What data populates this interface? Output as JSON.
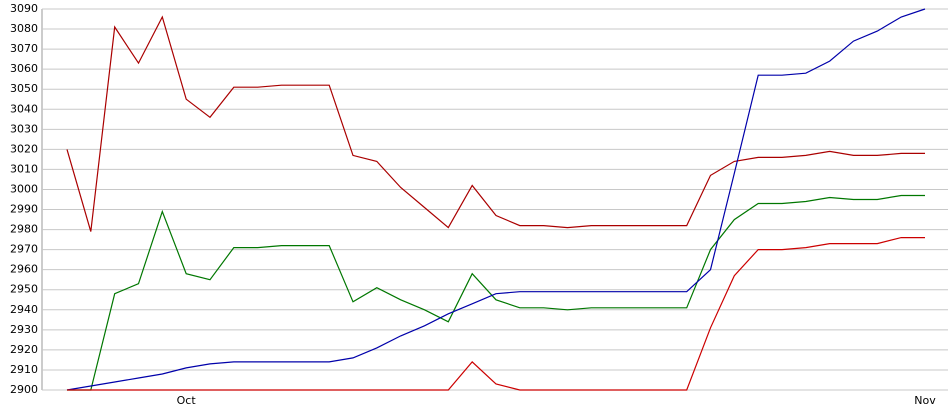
{
  "chart_data": {
    "type": "line",
    "categories": [
      null,
      null,
      null,
      null,
      null,
      "Oct",
      null,
      null,
      null,
      null,
      null,
      null,
      null,
      null,
      null,
      null,
      null,
      null,
      null,
      null,
      null,
      null,
      null,
      null,
      null,
      null,
      null,
      null,
      null,
      null,
      null,
      null,
      null,
      null,
      null,
      null,
      "Nov"
    ],
    "series": [
      {
        "color": "#aa0000",
        "values": [
          3020,
          2979,
          3081,
          3063,
          3086,
          3045,
          3036,
          3051,
          3051,
          3052,
          3052,
          3052,
          3017,
          3014,
          3001,
          2991,
          2981,
          3002,
          2987,
          2982,
          2982,
          2981,
          2982,
          2982,
          2982,
          2982,
          2982,
          3007,
          3014,
          3016,
          3016,
          3017,
          3019,
          3017,
          3017,
          3018,
          3018
        ]
      },
      {
        "color": "#007700",
        "values": [
          2900,
          2900,
          2948,
          2953,
          2989,
          2958,
          2955,
          2971,
          2971,
          2972,
          2972,
          2972,
          2944,
          2951,
          2945,
          2940,
          2934,
          2958,
          2945,
          2941,
          2941,
          2940,
          2941,
          2941,
          2941,
          2941,
          2941,
          2970,
          2985,
          2993,
          2993,
          2994,
          2996,
          2995,
          2995,
          2997,
          2997
        ]
      },
      {
        "color": "#0000aa",
        "values": [
          2900,
          2902,
          2904,
          2906,
          2908,
          2911,
          2913,
          2914,
          2914,
          2914,
          2914,
          2914,
          2916,
          2921,
          2927,
          2932,
          2938,
          2943,
          2948,
          2949,
          2949,
          2949,
          2949,
          2949,
          2949,
          2949,
          2949,
          2960,
          3008,
          3057,
          3057,
          3058,
          3064,
          3074,
          3079,
          3086,
          3090
        ]
      },
      {
        "color": "#cc0000",
        "values": [
          2900,
          2900,
          2900,
          2900,
          2900,
          2900,
          2900,
          2900,
          2900,
          2900,
          2900,
          2900,
          2900,
          2900,
          2900,
          2900,
          2900,
          2914,
          2903,
          2900,
          2900,
          2900,
          2900,
          2900,
          2900,
          2900,
          2900,
          2931,
          2957,
          2970,
          2970,
          2971,
          2973,
          2973,
          2973,
          2976,
          2976
        ]
      }
    ],
    "ylim": [
      2900,
      3090
    ],
    "yticks": [
      2900,
      2910,
      2920,
      2930,
      2940,
      2950,
      2960,
      2970,
      2980,
      2990,
      3000,
      3010,
      3020,
      3030,
      3040,
      3050,
      3060,
      3070,
      3080,
      3090
    ],
    "grid": true
  }
}
